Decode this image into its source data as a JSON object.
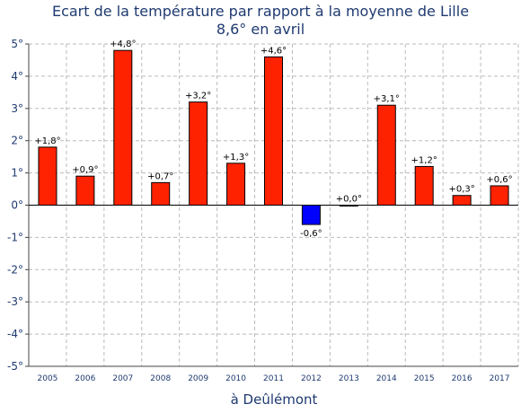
{
  "chart_data": {
    "type": "bar",
    "title": "Ecart de la température par rapport à la moyenne de Lille",
    "subtitle": "8,6° en avril",
    "xlabel": "à Deûlémont",
    "ylabel": "",
    "categories": [
      "2005",
      "2006",
      "2007",
      "2008",
      "2009",
      "2010",
      "2011",
      "2012",
      "2013",
      "2014",
      "2015",
      "2016",
      "2017"
    ],
    "values": [
      1.8,
      0.9,
      4.8,
      0.7,
      3.2,
      1.3,
      4.6,
      -0.6,
      0.0,
      3.1,
      1.2,
      0.3,
      0.6
    ],
    "data_labels": [
      "+1,8°",
      "+0,9°",
      "+4,8°",
      "+0,7°",
      "+3,2°",
      "+1,3°",
      "+4,6°",
      "-0,6°",
      "+0,0°",
      "+3,1°",
      "+1,2°",
      "+0,3°",
      "+0,6°"
    ],
    "ylim": [
      -5,
      5
    ],
    "yticks": [
      5,
      4,
      3,
      2,
      1,
      0,
      -1,
      -2,
      -3,
      -4,
      -5
    ],
    "ytick_labels": [
      "5°",
      "4°",
      "3°",
      "2°",
      "1°",
      "0°",
      "-1°",
      "-2°",
      "-3°",
      "-4°",
      "-5°"
    ],
    "grid": "dashed vertical and horizontal",
    "colors": {
      "positive": "#ff2200",
      "negative": "#0000ff",
      "text": "#1f3a70",
      "grid": "#bbbbbb",
      "axis": "#444444"
    }
  }
}
